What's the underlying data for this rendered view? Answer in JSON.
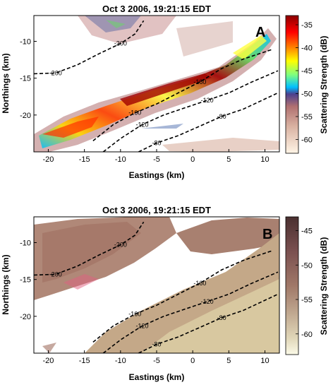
{
  "chart_data": [
    {
      "type": "heatmap",
      "panel_label": "A",
      "title": "Oct 3 2006, 19:21:15 EDT",
      "xlabel": "Eastings (km)",
      "ylabel": "Northings (km)",
      "xlim": [
        -22,
        12
      ],
      "ylim": [
        -25,
        -6.5
      ],
      "xticks": [
        -20,
        -15,
        -10,
        -5,
        0,
        5,
        10
      ],
      "yticks": [
        -10,
        -15,
        -20
      ],
      "colorbar": {
        "label": "Scattering Strength (dB)",
        "range": [
          -63,
          -33
        ],
        "ticks": [
          -35,
          -40,
          -45,
          -50,
          -55,
          -60
        ],
        "colormap": "jet-over-pink",
        "colors_top_to_bottom": [
          "#8b0000",
          "#ff0000",
          "#ff8c00",
          "#ffff00",
          "#7fff7f",
          "#00bfff",
          "#4b3f8f",
          "#b07070",
          "#d8b0a0",
          "#fff5e6"
        ]
      },
      "contours": [
        {
          "label": "-200",
          "points": [
            [
              -22,
              -14.4
            ],
            [
              -19,
              -14.3
            ],
            [
              -16,
              -13.2
            ],
            [
              -13,
              -11.7
            ],
            [
              -10,
              -10.3
            ],
            [
              -8,
              -9.0
            ],
            [
              -6.8,
              -7.2
            ]
          ]
        },
        {
          "label": "-160",
          "points": [
            [
              -13.8,
              -23.5
            ],
            [
              -11,
              -21.3
            ],
            [
              -8,
              -19.7
            ],
            [
              -5,
              -18.5
            ],
            [
              -2,
              -17.0
            ],
            [
              1,
              -15.5
            ],
            [
              4,
              -13.7
            ],
            [
              7,
              -12.4
            ],
            [
              11,
              -11.1
            ]
          ]
        },
        {
          "label": "-120",
          "points": [
            [
              -12.4,
              -25
            ],
            [
              -10,
              -23.2
            ],
            [
              -7,
              -21.3
            ],
            [
              -4,
              -20.0
            ],
            [
              -1,
              -19.0
            ],
            [
              2,
              -18.0
            ],
            [
              5,
              -17.0
            ],
            [
              8,
              -15.6
            ],
            [
              11.8,
              -14.0
            ]
          ]
        },
        {
          "label": "-80",
          "points": [
            [
              -7.5,
              -25
            ],
            [
              -5,
              -23.8
            ],
            [
              -2,
              -22.8
            ],
            [
              1,
              -21.5
            ],
            [
              4,
              -20.2
            ],
            [
              7,
              -19.2
            ],
            [
              11.8,
              -17.0
            ]
          ]
        }
      ]
    },
    {
      "type": "heatmap",
      "panel_label": "B",
      "title": "Oct 3 2006, 19:21:15 EDT",
      "xlabel": "Eastings (km)",
      "ylabel": "Northings (km)",
      "xlim": [
        -22,
        12
      ],
      "ylim": [
        -25,
        -6.5
      ],
      "xticks": [
        -20,
        -15,
        -10,
        -5,
        0,
        5,
        10
      ],
      "yticks": [
        -10,
        -15,
        -20
      ],
      "colorbar": {
        "label": "Scattering Strength (dB)",
        "range": [
          -63,
          -43
        ],
        "ticks": [
          -45,
          -50,
          -55,
          -60
        ],
        "colormap": "pink-brown",
        "colors_top_to_bottom": [
          "#4a3030",
          "#7a5050",
          "#a07868",
          "#c0a890",
          "#e0d6b8",
          "#fbfae8"
        ]
      },
      "contours": [
        {
          "label": "-200",
          "points": [
            [
              -22,
              -14.4
            ],
            [
              -19,
              -14.3
            ],
            [
              -16,
              -13.2
            ],
            [
              -13,
              -11.7
            ],
            [
              -10,
              -10.3
            ],
            [
              -8,
              -9.0
            ],
            [
              -6.8,
              -7.2
            ]
          ]
        },
        {
          "label": "-160",
          "points": [
            [
              -13.8,
              -23.5
            ],
            [
              -11,
              -21.3
            ],
            [
              -8,
              -19.7
            ],
            [
              -5,
              -18.5
            ],
            [
              -2,
              -17.0
            ],
            [
              1,
              -15.5
            ],
            [
              4,
              -13.7
            ],
            [
              7,
              -12.4
            ],
            [
              11,
              -11.1
            ]
          ]
        },
        {
          "label": "-120",
          "points": [
            [
              -12.4,
              -25
            ],
            [
              -10,
              -23.2
            ],
            [
              -7,
              -21.3
            ],
            [
              -4,
              -20.0
            ],
            [
              -1,
              -19.0
            ],
            [
              2,
              -18.0
            ],
            [
              5,
              -17.0
            ],
            [
              8,
              -15.6
            ],
            [
              11.8,
              -14.0
            ]
          ]
        },
        {
          "label": "-80",
          "points": [
            [
              -7.5,
              -25
            ],
            [
              -5,
              -23.8
            ],
            [
              -2,
              -22.8
            ],
            [
              1,
              -21.5
            ],
            [
              4,
              -20.2
            ],
            [
              7,
              -19.2
            ],
            [
              11.8,
              -17.0
            ]
          ]
        }
      ]
    }
  ]
}
